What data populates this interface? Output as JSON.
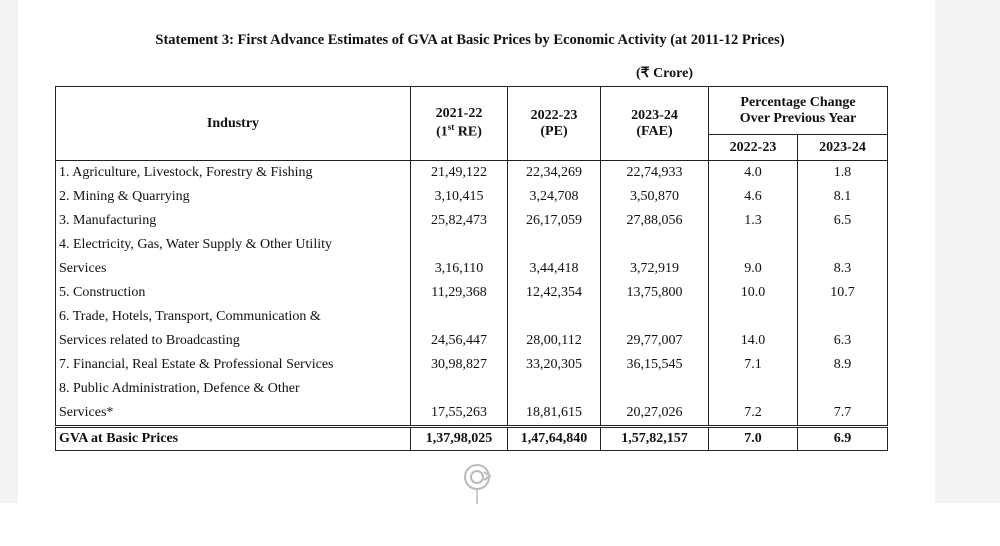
{
  "title": "Statement 3: First Advance Estimates of GVA at Basic Prices by Economic Activity (at 2011-12 Prices)",
  "unit": "(₹ Crore)",
  "table": {
    "header": {
      "industry": "Industry",
      "years": [
        {
          "line1": "2021-22",
          "line2_pre": "(1",
          "line2_sup": "st",
          "line2_post": " RE)"
        },
        {
          "line1": "2022-23",
          "line2_pre": "(PE)"
        },
        {
          "line1": "2023-24",
          "line2_pre": "(FAE)"
        }
      ],
      "change": [
        "Percentage Change",
        "Over Previous Year"
      ],
      "change_years": [
        "2022-23",
        "2023-24"
      ]
    },
    "rows": [
      {
        "industry": [
          "1. Agriculture, Livestock, Forestry & Fishing"
        ],
        "values": [
          "21,49,122",
          "22,34,269",
          "22,74,933",
          "4.0",
          "1.8"
        ]
      },
      {
        "industry": [
          "2. Mining & Quarrying"
        ],
        "values": [
          "3,10,415",
          "3,24,708",
          "3,50,870",
          "4.6",
          "8.1"
        ]
      },
      {
        "industry": [
          "3. Manufacturing"
        ],
        "values": [
          "25,82,473",
          "26,17,059",
          "27,88,056",
          "1.3",
          "6.5"
        ]
      },
      {
        "industry": [
          "4. Electricity, Gas, Water Supply & Other Utility",
          "Services"
        ],
        "values": [
          "3,16,110",
          "3,44,418",
          "3,72,919",
          "9.0",
          "8.3"
        ]
      },
      {
        "industry": [
          "5. Construction"
        ],
        "values": [
          "11,29,368",
          "12,42,354",
          "13,75,800",
          "10.0",
          "10.7"
        ]
      },
      {
        "industry": [
          "6. Trade, Hotels, Transport, Communication &",
          "Services related to Broadcasting"
        ],
        "values": [
          "24,56,447",
          "28,00,112",
          "29,77,007",
          "14.0",
          "6.3"
        ]
      },
      {
        "industry": [
          "7. Financial, Real Estate & Professional Services"
        ],
        "values": [
          "30,98,827",
          "33,20,305",
          "36,15,545",
          "7.1",
          "8.9"
        ]
      },
      {
        "industry": [
          "8. Public Administration, Defence & Other",
          "Services*"
        ],
        "values": [
          "17,55,263",
          "18,81,615",
          "20,27,026",
          "7.2",
          "7.7"
        ]
      }
    ],
    "total": {
      "label": "GVA at Basic Prices",
      "values": [
        "1,37,98,025",
        "1,47,64,840",
        "1,57,82,157",
        "7.0",
        "6.9"
      ]
    }
  }
}
